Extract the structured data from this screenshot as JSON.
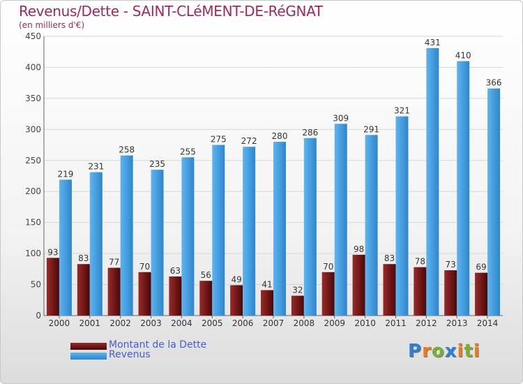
{
  "chart_data": {
    "type": "bar",
    "title": "Revenus/Dette - SAINT-CLéMENT-DE-RéGNAT",
    "subtitle": "(en milliers d'€)",
    "categories": [
      "2000",
      "2001",
      "2002",
      "2003",
      "2004",
      "2005",
      "2006",
      "2007",
      "2008",
      "2009",
      "2010",
      "2011",
      "2012",
      "2013",
      "2014"
    ],
    "series": [
      {
        "name": "Montant de la Dette",
        "color": "#7a1a1a",
        "values": [
          93,
          83,
          77,
          70,
          63,
          56,
          49,
          41,
          32,
          70,
          98,
          83,
          78,
          73,
          69
        ]
      },
      {
        "name": "Revenus",
        "color": "#4aa3e6",
        "values": [
          219,
          231,
          258,
          235,
          255,
          275,
          272,
          280,
          286,
          309,
          291,
          321,
          431,
          410,
          366
        ]
      }
    ],
    "ylim": [
      0,
      450
    ],
    "yticks": [
      0,
      50,
      100,
      150,
      200,
      250,
      300,
      350,
      400,
      450
    ],
    "grid": true,
    "legend": "bottom-left"
  },
  "logo": {
    "letters": [
      "P",
      "r",
      "o",
      "x",
      "i",
      "t",
      "i"
    ],
    "colors": [
      "#2f7fd0",
      "#f07a1a",
      "#7ab030",
      "#2f7fd0",
      "#f07a1a",
      "#7ab030",
      "#f07a1a"
    ]
  }
}
